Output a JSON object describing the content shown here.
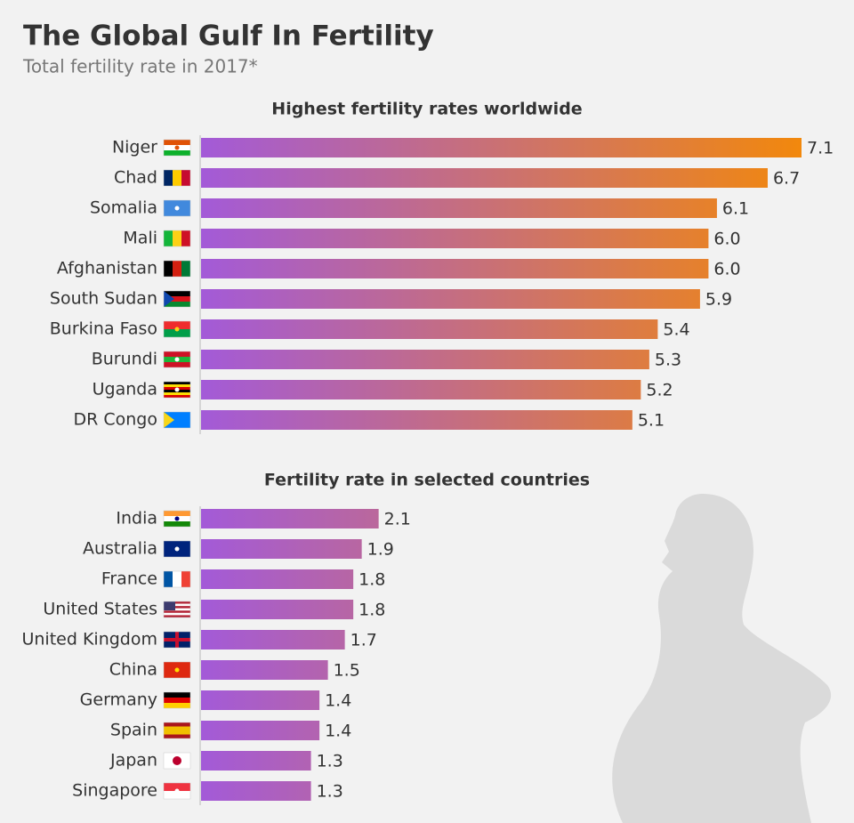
{
  "title": "The Global Gulf In Fertility",
  "subtitle": "Total fertility rate in 2017*",
  "chart_data": [
    {
      "type": "bar",
      "orientation": "horizontal",
      "title": "Highest fertility rates worldwide",
      "categories": [
        "Niger",
        "Chad",
        "Somalia",
        "Mali",
        "Afghanistan",
        "South Sudan",
        "Burkina Faso",
        "Burundi",
        "Uganda",
        "DR Congo"
      ],
      "values": [
        7.1,
        6.7,
        6.1,
        6.0,
        6.0,
        5.9,
        5.4,
        5.3,
        5.2,
        5.1
      ],
      "value_labels": [
        "7.1",
        "6.7",
        "6.1",
        "6.0",
        "6.0",
        "5.9",
        "5.4",
        "5.3",
        "5.2",
        "5.1"
      ],
      "colors": [
        "#a35ad8",
        "#f2880c"
      ]
    },
    {
      "type": "bar",
      "orientation": "horizontal",
      "title": "Fertility rate in selected countries",
      "categories": [
        "India",
        "Australia",
        "France",
        "United States",
        "United Kingdom",
        "China",
        "Germany",
        "Spain",
        "Japan",
        "Singapore"
      ],
      "values": [
        2.1,
        1.9,
        1.8,
        1.8,
        1.7,
        1.5,
        1.4,
        1.4,
        1.3,
        1.3
      ],
      "value_labels": [
        "2.1",
        "1.9",
        "1.8",
        "1.8",
        "1.7",
        "1.5",
        "1.4",
        "1.4",
        "1.3",
        "1.3"
      ],
      "colors": [
        "#a35ad8",
        "#f2880c"
      ]
    }
  ]
}
